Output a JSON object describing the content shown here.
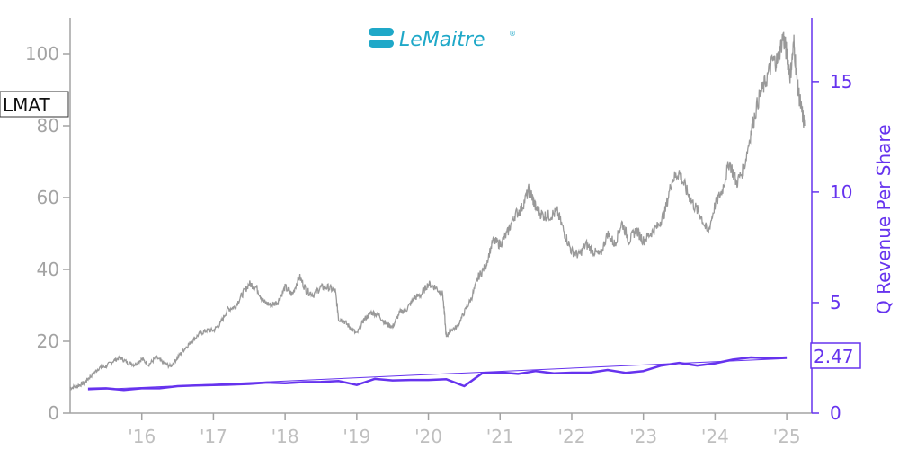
{
  "chart_data": {
    "type": "line",
    "ticker": "LMAT",
    "logo_text": "LeMaitre",
    "logo_registered_mark": "®",
    "x_ticks": [
      "'16",
      "'17",
      "'18",
      "'19",
      "'20",
      "'21",
      "'22",
      "'23",
      "'24",
      "'25"
    ],
    "y_left": {
      "ticks": [
        0,
        20,
        40,
        60,
        80,
        100
      ],
      "range": [
        0,
        110
      ]
    },
    "y_right": {
      "label": "Q Revenue Per Share",
      "ticks": [
        0,
        5,
        10,
        15
      ],
      "range": [
        0,
        17.88
      ]
    },
    "x_range": [
      2015.0,
      2025.35
    ],
    "last_value_label": "2.47",
    "colors": {
      "price": "#999999",
      "revenue": "#6633ee",
      "axis_left": "#a3a3a3",
      "axis_right": "#6633ee"
    },
    "series": [
      {
        "name": "LMAT",
        "axis": "left",
        "x": [
          2015.0,
          2015.1,
          2015.2,
          2015.3,
          2015.4,
          2015.5,
          2015.6,
          2015.7,
          2015.8,
          2015.9,
          2016.0,
          2016.1,
          2016.2,
          2016.3,
          2016.4,
          2016.5,
          2016.6,
          2016.7,
          2016.8,
          2016.9,
          2017.0,
          2017.1,
          2017.2,
          2017.3,
          2017.4,
          2017.5,
          2017.6,
          2017.7,
          2017.8,
          2017.9,
          2018.0,
          2018.1,
          2018.2,
          2018.3,
          2018.4,
          2018.5,
          2018.6,
          2018.7,
          2018.75,
          2018.8,
          2018.9,
          2019.0,
          2019.1,
          2019.2,
          2019.3,
          2019.4,
          2019.5,
          2019.6,
          2019.7,
          2019.8,
          2019.9,
          2020.0,
          2020.1,
          2020.2,
          2020.25,
          2020.3,
          2020.4,
          2020.5,
          2020.6,
          2020.7,
          2020.8,
          2020.9,
          2021.0,
          2021.1,
          2021.2,
          2021.3,
          2021.4,
          2021.45,
          2021.5,
          2021.6,
          2021.7,
          2021.8,
          2021.9,
          2022.0,
          2022.1,
          2022.2,
          2022.3,
          2022.4,
          2022.5,
          2022.6,
          2022.7,
          2022.8,
          2022.9,
          2023.0,
          2023.1,
          2023.2,
          2023.3,
          2023.4,
          2023.5,
          2023.6,
          2023.7,
          2023.8,
          2023.9,
          2024.0,
          2024.1,
          2024.2,
          2024.3,
          2024.4,
          2024.5,
          2024.6,
          2024.7,
          2024.8,
          2024.87,
          2024.95,
          2025.0,
          2025.05,
          2025.1,
          2025.15,
          2025.2,
          2025.25
        ],
        "values": [
          7,
          7.5,
          8.5,
          10.5,
          12.5,
          13,
          14.5,
          15.5,
          14,
          13.5,
          15,
          13.5,
          15.5,
          14,
          13,
          15.5,
          18,
          20,
          22,
          23,
          23,
          25,
          29,
          29.5,
          33,
          36,
          35,
          31,
          30,
          31,
          35,
          33,
          38,
          34,
          33,
          35,
          35,
          34,
          26,
          26,
          24,
          22,
          26,
          28,
          27.5,
          25,
          24,
          28,
          29,
          32,
          33,
          36,
          35,
          33,
          21,
          23,
          24,
          28,
          32,
          38,
          41,
          48,
          47,
          50,
          55,
          57,
          62,
          60,
          57,
          55,
          55,
          56,
          50,
          45,
          44,
          47,
          45,
          44,
          50,
          47,
          53,
          48,
          51,
          48,
          50,
          52,
          56,
          65,
          67,
          62,
          58,
          55,
          50,
          58,
          62,
          70,
          64,
          68,
          78,
          87,
          92,
          98,
          98,
          105,
          100,
          94,
          103,
          91,
          85,
          80
        ]
      },
      {
        "name": "Q Revenue Per Share",
        "axis": "right",
        "x": [
          2015.25,
          2015.5,
          2015.75,
          2016.0,
          2016.25,
          2016.5,
          2016.75,
          2017.0,
          2017.25,
          2017.5,
          2017.75,
          2018.0,
          2018.25,
          2018.5,
          2018.75,
          2019.0,
          2019.25,
          2019.5,
          2019.75,
          2020.0,
          2020.25,
          2020.5,
          2020.75,
          2021.0,
          2021.25,
          2021.5,
          2021.75,
          2022.0,
          2022.25,
          2022.5,
          2022.75,
          2023.0,
          2023.25,
          2023.5,
          2023.75,
          2024.0,
          2024.25,
          2024.5,
          2024.75,
          2025.0
        ],
        "values": [
          1.1,
          1.12,
          1.05,
          1.12,
          1.12,
          1.22,
          1.25,
          1.27,
          1.29,
          1.32,
          1.38,
          1.35,
          1.4,
          1.41,
          1.45,
          1.27,
          1.55,
          1.48,
          1.5,
          1.5,
          1.53,
          1.22,
          1.8,
          1.84,
          1.77,
          1.9,
          1.8,
          1.83,
          1.83,
          1.95,
          1.82,
          1.9,
          2.15,
          2.27,
          2.15,
          2.25,
          2.42,
          2.52,
          2.48,
          2.52
        ]
      }
    ],
    "trendline": {
      "axis": "right",
      "x": [
        2015.25,
        2025.0
      ],
      "values": [
        1.05,
        2.47
      ]
    }
  }
}
